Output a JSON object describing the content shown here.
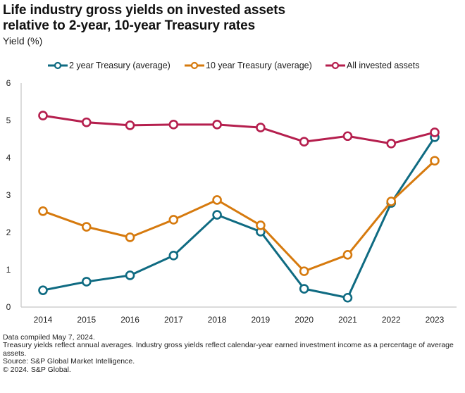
{
  "title_line1": "Life industry gross yields on invested assets",
  "title_line2": "relative to 2-year, 10-year Treasury rates",
  "subtitle": "Yield (%)",
  "legend": [
    {
      "label": "2 year Treasury (average)",
      "color": "#0f6b82"
    },
    {
      "label": "10 year Treasury (average)",
      "color": "#d67a0e"
    },
    {
      "label": "All invested assets",
      "color": "#b51f4e"
    }
  ],
  "footnotes": [
    "Data compiled May 7, 2024.",
    "Treasury yields reflect annual averages. Industry gross yields reflect calendar-year earned investment income as a percentage of average assets.",
    "Source: S&P Global Market Intelligence.",
    "© 2024. S&P Global."
  ],
  "chart_data": {
    "type": "line",
    "title": "Life industry gross yields on invested assets relative to 2-year, 10-year Treasury rates",
    "xlabel": "",
    "ylabel": "Yield (%)",
    "categories": [
      "2014",
      "2015",
      "2016",
      "2017",
      "2018",
      "2019",
      "2020",
      "2021",
      "2022",
      "2023"
    ],
    "ylim": [
      0,
      6
    ],
    "yticks": [
      "0",
      "1",
      "2",
      "3",
      "4",
      "5",
      "6"
    ],
    "grid": false,
    "legend_position": "top",
    "series": [
      {
        "name": "2 year Treasury (average)",
        "color": "#0f6b82",
        "values": [
          0.45,
          0.68,
          0.85,
          1.38,
          2.47,
          2.02,
          0.49,
          0.25,
          2.79,
          4.55
        ]
      },
      {
        "name": "10 year Treasury (average)",
        "color": "#d67a0e",
        "values": [
          2.57,
          2.15,
          1.87,
          2.34,
          2.87,
          2.19,
          0.96,
          1.4,
          2.83,
          3.92
        ]
      },
      {
        "name": "All invested assets",
        "color": "#b51f4e",
        "values": [
          5.13,
          4.95,
          4.87,
          4.89,
          4.89,
          4.81,
          4.43,
          4.58,
          4.38,
          4.68
        ]
      }
    ]
  }
}
